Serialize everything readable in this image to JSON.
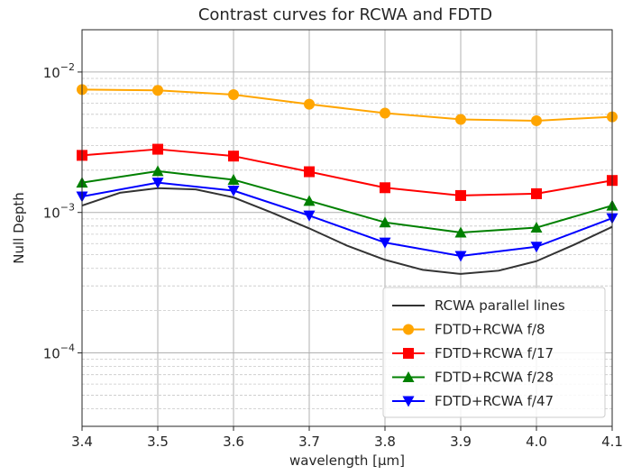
{
  "chart_data": {
    "type": "line",
    "title": "Contrast curves for RCWA and FDTD",
    "xlabel": "wavelength [μm]",
    "ylabel": "Null Depth",
    "xlim": [
      3.4,
      4.1
    ],
    "ylim": [
      3e-05,
      0.02
    ],
    "yscale": "log",
    "grid": true,
    "legend_position": "bottom-right",
    "x_ticks": [
      "3.4",
      "3.5",
      "3.6",
      "3.7",
      "3.8",
      "3.9",
      "4.0",
      "4.1"
    ],
    "y_ticks": [
      {
        "base": "10",
        "exp": "−2",
        "value": 0.01
      },
      {
        "base": "10",
        "exp": "−3",
        "value": 0.001
      },
      {
        "base": "10",
        "exp": "−4",
        "value": 0.0001
      }
    ],
    "x": [
      3.4,
      3.5,
      3.6,
      3.7,
      3.8,
      3.9,
      4.0,
      4.1
    ],
    "series": [
      {
        "name": "RCWA parallel lines",
        "color": "#333333",
        "marker": "none",
        "x": [
          3.4,
          3.45,
          3.5,
          3.55,
          3.6,
          3.65,
          3.7,
          3.75,
          3.8,
          3.85,
          3.9,
          3.95,
          4.0,
          4.05,
          4.1
        ],
        "values": [
          0.00112,
          0.00138,
          0.00149,
          0.00146,
          0.00128,
          0.001,
          0.00077,
          0.00058,
          0.00046,
          0.00039,
          0.000365,
          0.000385,
          0.00045,
          0.00059,
          0.00079
        ]
      },
      {
        "name": "FDTD+RCWA f/8",
        "color": "#ffa500",
        "marker": "circle",
        "values": [
          0.0075,
          0.0074,
          0.0069,
          0.0059,
          0.0051,
          0.0046,
          0.0045,
          0.0048
        ]
      },
      {
        "name": "FDTD+RCWA f/17",
        "color": "#ff0000",
        "marker": "square",
        "values": [
          0.00255,
          0.00282,
          0.00252,
          0.00195,
          0.0015,
          0.00132,
          0.00136,
          0.00169
        ]
      },
      {
        "name": "FDTD+RCWA f/28",
        "color": "#008000",
        "marker": "triangle-up",
        "values": [
          0.00163,
          0.00197,
          0.00171,
          0.00121,
          0.00085,
          0.00072,
          0.00078,
          0.00112
        ]
      },
      {
        "name": "FDTD+RCWA f/47",
        "color": "#0000ff",
        "marker": "triangle-down",
        "values": [
          0.0013,
          0.00163,
          0.00143,
          0.00095,
          0.00061,
          0.00049,
          0.00057,
          0.00091
        ]
      }
    ]
  }
}
